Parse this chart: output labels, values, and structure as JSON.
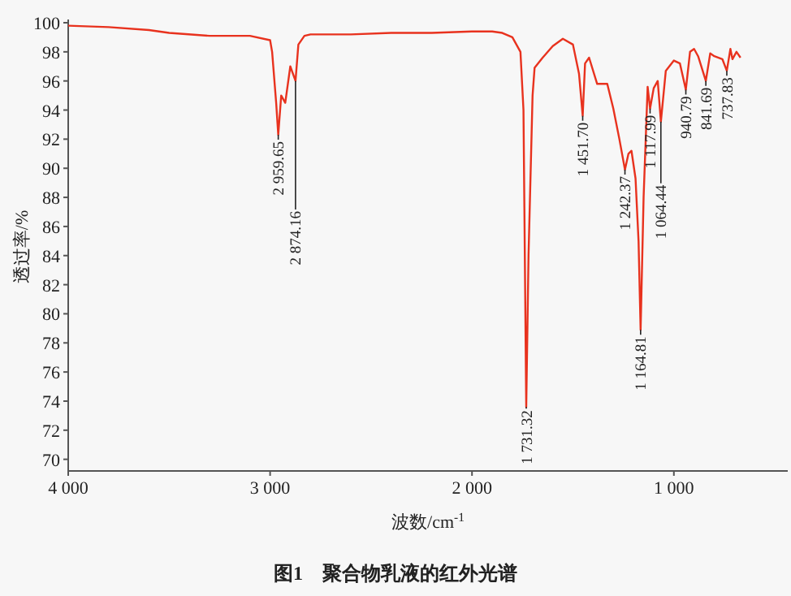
{
  "chart_data": {
    "type": "line",
    "title": "图1　聚合物乳液的红外光谱",
    "xlabel": "波数/cm$^{-1}$",
    "ylabel": "透过率/%",
    "x": [
      4000,
      3800,
      3600,
      3500,
      3300,
      3100,
      3000,
      2990,
      2970,
      2959.65,
      2945,
      2925,
      2900,
      2874.16,
      2860,
      2830,
      2800,
      2600,
      2400,
      2200,
      2000,
      1900,
      1850,
      1800,
      1760,
      1745,
      1731.32,
      1720,
      1700,
      1690,
      1650,
      1600,
      1550,
      1500,
      1470,
      1451.7,
      1440,
      1420,
      1380,
      1330,
      1300,
      1270,
      1242.37,
      1225,
      1210,
      1190,
      1175,
      1164.81,
      1150,
      1130,
      1117.99,
      1100,
      1080,
      1064.44,
      1040,
      1000,
      970,
      940.79,
      920,
      900,
      880,
      841.69,
      820,
      800,
      760,
      737.83,
      720,
      710,
      690,
      670
    ],
    "series": [
      {
        "color": "#e8321e",
        "values": [
          99.8,
          99.7,
          99.5,
          99.3,
          99.1,
          99.1,
          98.8,
          98.0,
          94.5,
          92.3,
          95.0,
          94.5,
          97.0,
          96.0,
          98.5,
          99.1,
          99.2,
          99.2,
          99.3,
          99.3,
          99.4,
          99.4,
          99.3,
          99.0,
          98.0,
          94.0,
          73.6,
          84.0,
          95.0,
          96.9,
          97.6,
          98.4,
          98.9,
          98.5,
          96.5,
          93.6,
          97.2,
          97.6,
          95.8,
          95.8,
          94.1,
          92.0,
          89.9,
          91.0,
          91.2,
          89.3,
          85.0,
          78.9,
          88.0,
          95.6,
          94.1,
          95.5,
          96.0,
          93.2,
          96.7,
          97.4,
          97.2,
          95.4,
          98.0,
          98.2,
          97.7,
          96.0,
          97.9,
          97.7,
          97.5,
          96.7,
          98.2,
          97.5,
          98.0,
          97.6
        ]
      }
    ],
    "xlim": [
      4000,
      436
    ],
    "ylim": [
      69.2,
      100
    ],
    "xticks": [
      {
        "value": 4000,
        "label": "4 000"
      },
      {
        "value": 3000,
        "label": "3 000"
      },
      {
        "value": 2000,
        "label": "2 000"
      },
      {
        "value": 1000,
        "label": "1 000"
      }
    ],
    "yticks": [
      70,
      72,
      74,
      76,
      78,
      80,
      82,
      84,
      86,
      88,
      90,
      92,
      94,
      96,
      98,
      100
    ],
    "grid": false,
    "annotations": [
      {
        "text": "2 959.65",
        "x": 2959.65,
        "y": 92.3
      },
      {
        "text": "2 874.16",
        "x": 2874.16,
        "y": 96.0
      },
      {
        "text": "1 731.32",
        "x": 1731.32,
        "y": 73.6
      },
      {
        "text": "1 451.70",
        "x": 1451.7,
        "y": 93.6
      },
      {
        "text": "1 242.37",
        "x": 1242.37,
        "y": 89.9
      },
      {
        "text": "1 164.81",
        "x": 1164.81,
        "y": 78.9
      },
      {
        "text": "1 117.99",
        "x": 1117.99,
        "y": 94.1
      },
      {
        "text": "1 064.44",
        "x": 1064.44,
        "y": 93.2
      },
      {
        "text": "940.79",
        "x": 940.79,
        "y": 95.4
      },
      {
        "text": "841.69",
        "x": 841.69,
        "y": 96.0
      },
      {
        "text": "737.83",
        "x": 737.83,
        "y": 96.7
      }
    ]
  }
}
